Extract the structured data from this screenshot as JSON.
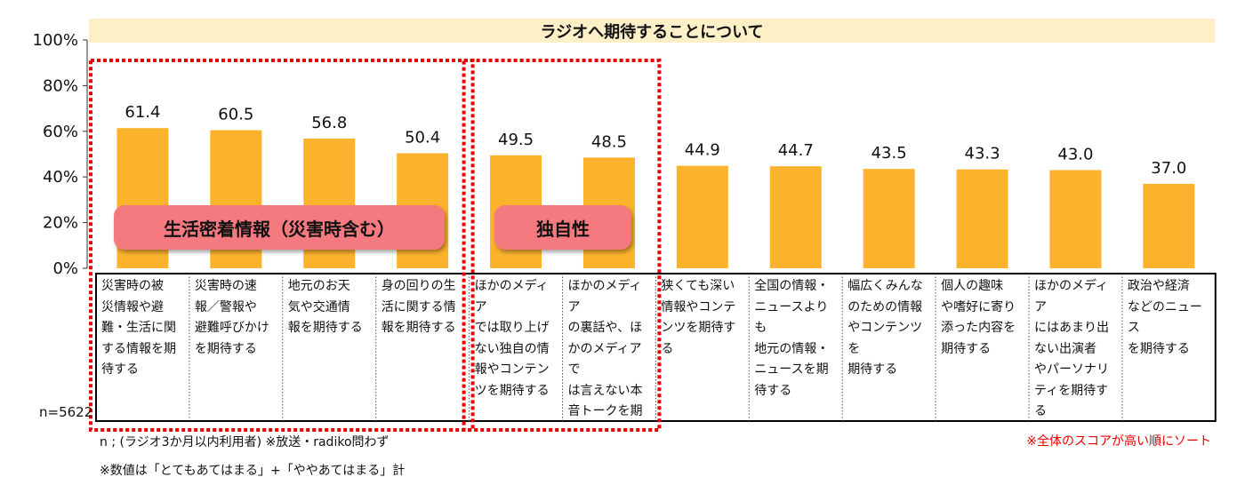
{
  "chart_data": {
    "type": "bar",
    "title": "ラジオへ期待することについて",
    "categories": [
      "災害時の被\n災情報や避\n難・生活に関\nする情報を期\n待する",
      "災害時の速\n報／警報や\n避難呼びかけ\nを期待する",
      "地元のお天\n気や交通情\n報を期待する",
      "身の回りの生\n活に関する情\n報を期待する",
      "ほかのメディア\nでは取り上げ\nない独自の情\n報やコンテン\nツを期待する",
      "ほかのメディア\nの裏話や、ほ\nかのメディアで\nは言えない本\n音トークを期\n待する",
      "狭くても深い\n情報やコンテ\nンツを期待す\nる",
      "全国の情報・\nニュースよりも\n地元の情報・\nニュースを期\n待する",
      "幅広くみんな\nのための情報\nやコンテンツを\n期待する",
      "個人の趣味\nや嗜好に寄り\n添った内容を\n期待する",
      "ほかのメディア\nにはあまり出\nない出演者\nやパーソナリ\nティを期待す\nる",
      "政治や経済\nなどのニュース\nを期待する"
    ],
    "values": [
      61.4,
      60.5,
      56.8,
      50.4,
      49.5,
      48.5,
      44.9,
      44.7,
      43.5,
      43.3,
      43.0,
      37.0
    ],
    "value_labels": [
      "61.4",
      "60.5",
      "56.8",
      "50.4",
      "49.5",
      "48.5",
      "44.9",
      "44.7",
      "43.5",
      "43.3",
      "43.0",
      "37.0"
    ],
    "y_ticks": [
      "0%",
      "20%",
      "40%",
      "60%",
      "80%",
      "100%"
    ],
    "ylim": [
      0,
      100
    ],
    "bar_color": "#fbb32d",
    "grid": false,
    "groups": [
      {
        "label": "生活密着情報（災害時含む）",
        "from": 0,
        "to": 3
      },
      {
        "label": "独自性",
        "from": 4,
        "to": 5
      }
    ],
    "group_border_color": "#e60000",
    "group_label_color": "#f47a7f"
  },
  "sample": "n=5622",
  "notes": {
    "respondents": "n ; (ラジオ3か月以内利用者)  ※放送・radiko問わず",
    "values": "※数値は「とてもあてはまる」+「ややあてはまる」計",
    "sort": "※全体のスコアが高い順にソート"
  }
}
